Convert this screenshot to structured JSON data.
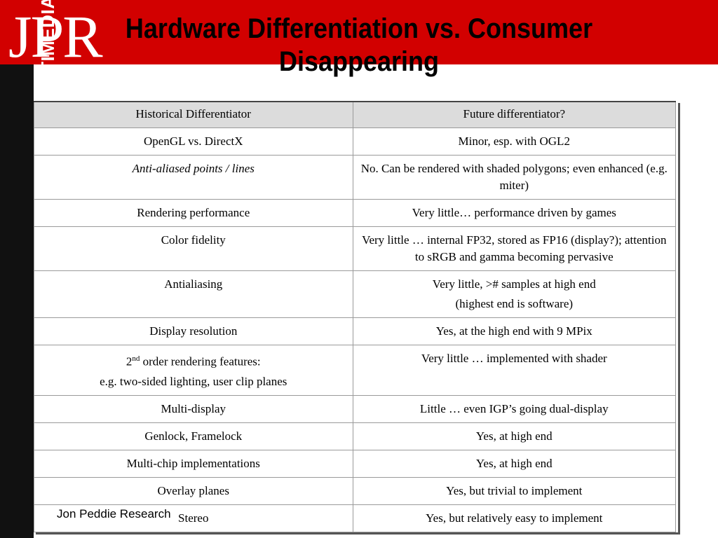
{
  "logo": "JPR",
  "sidebar_text": "THE BUSINESS OF GRAPHICS AND MULTIMEDIA",
  "title_line1": "Hardware Differentiation vs. Consumer",
  "title_line2": "Disappearing",
  "table": {
    "headers": [
      "Historical Differentiator",
      "Future differentiator?"
    ],
    "rows": [
      {
        "a": "OpenGL vs. DirectX",
        "b": "Minor, esp. with OGL2"
      },
      {
        "a": "Anti-aliased points / lines",
        "b": "No. Can be rendered with shaded polygons; even enhanced (e.g. miter)"
      },
      {
        "a": "Rendering performance",
        "b": "Very little… performance driven by games"
      },
      {
        "a": "Color fidelity",
        "b": "Very little … internal FP32, stored as FP16 (display?); attention to sRGB and gamma becoming pervasive"
      },
      {
        "a": "Antialiasing",
        "b1": "Very little, ># samples at high end",
        "b2": "(highest end is software)"
      },
      {
        "a": "Display resolution",
        "b": "Yes, at the high end with 9 MPix"
      },
      {
        "a_num": "2",
        "a_sup": "nd",
        "a_rest": " order rendering features:",
        "a2": "e.g. two-sided lighting, user clip planes",
        "b": "Very little … implemented with shader"
      },
      {
        "a": "Multi-display",
        "b": "Little … even IGP’s going dual-display"
      },
      {
        "a": "Genlock, Framelock",
        "b": "Yes, at high end"
      },
      {
        "a": "Multi-chip implementations",
        "b": "Yes, at high end"
      },
      {
        "a": "Overlay planes",
        "b": "Yes, but trivial to implement"
      },
      {
        "a": "Stereo",
        "b": "Yes, but relatively easy to implement"
      }
    ]
  },
  "footer": "Jon Peddie Research"
}
